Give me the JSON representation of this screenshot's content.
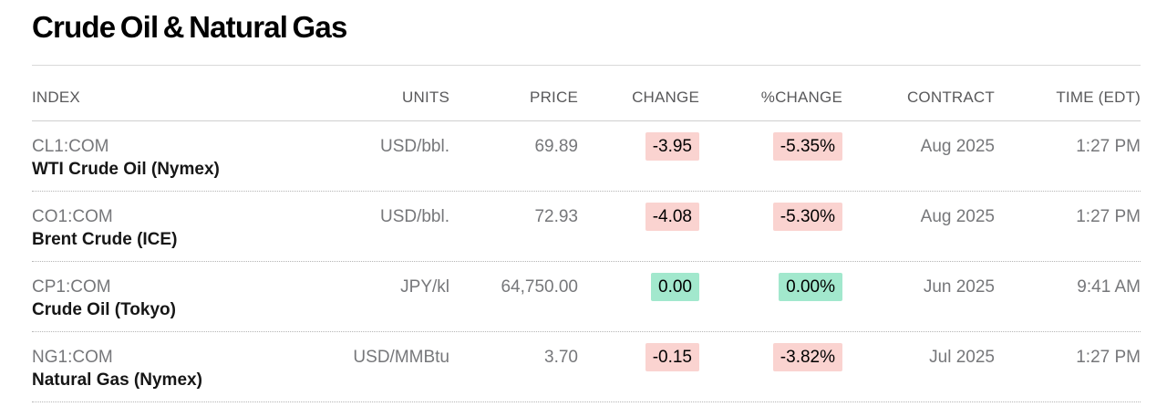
{
  "title": "Crude Oil & Natural Gas",
  "colors": {
    "negative_highlight": "#fad3d0",
    "neutral_highlight": "#a2e8cd",
    "header_text": "#59595b",
    "muted_text": "#76777a"
  },
  "table": {
    "headers": {
      "index": "INDEX",
      "units": "UNITS",
      "price": "PRICE",
      "change": "CHANGE",
      "pct_change": "%CHANGE",
      "contract": "CONTRACT",
      "time": "TIME (EDT)"
    },
    "rows": [
      {
        "ticker": "CL1:COM",
        "name": "WTI Crude Oil (Nymex)",
        "units": "USD/bbl.",
        "price": "69.89",
        "change": "-3.95",
        "pct_change": "-5.35%",
        "direction": "down",
        "contract": "Aug 2025",
        "time": "1:27 PM"
      },
      {
        "ticker": "CO1:COM",
        "name": "Brent Crude (ICE)",
        "units": "USD/bbl.",
        "price": "72.93",
        "change": "-4.08",
        "pct_change": "-5.30%",
        "direction": "down",
        "contract": "Aug 2025",
        "time": "1:27 PM"
      },
      {
        "ticker": "CP1:COM",
        "name": "Crude Oil (Tokyo)",
        "units": "JPY/kl",
        "price": "64,750.00",
        "change": "0.00",
        "pct_change": "0.00%",
        "direction": "flat",
        "contract": "Jun 2025",
        "time": "9:41 AM"
      },
      {
        "ticker": "NG1:COM",
        "name": "Natural Gas (Nymex)",
        "units": "USD/MMBtu",
        "price": "3.70",
        "change": "-0.15",
        "pct_change": "-3.82%",
        "direction": "down",
        "contract": "Jul 2025",
        "time": "1:27 PM"
      }
    ]
  }
}
